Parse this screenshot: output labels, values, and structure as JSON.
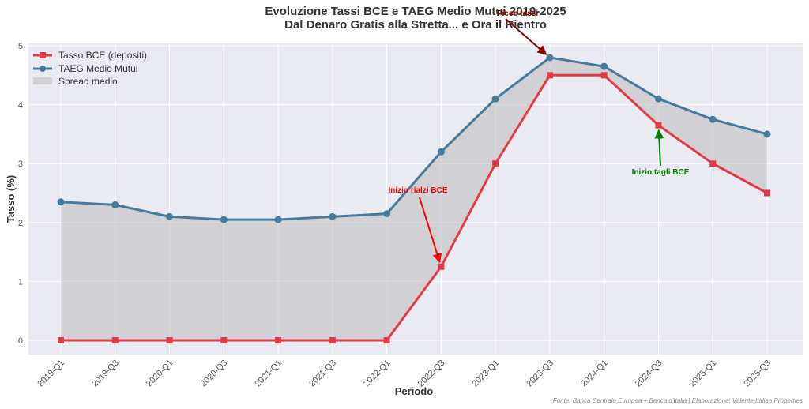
{
  "chart_data": {
    "type": "line",
    "title": "Evoluzione Tassi BCE e TAEG Medio Mutui 2019-2025",
    "subtitle": "Dal Denaro Gratis alla Stretta... e Ora il Rientro",
    "xlabel": "Periodo",
    "ylabel": "Tasso (%)",
    "ylim": [
      0,
      5
    ],
    "yticks": [
      0,
      1,
      2,
      3,
      4,
      5
    ],
    "grid": true,
    "legend_position": "upper left",
    "categories": [
      "2019-Q1",
      "2019-Q3",
      "2020-Q1",
      "2020-Q3",
      "2021-Q1",
      "2021-Q3",
      "2022-Q1",
      "2022-Q3",
      "2023-Q1",
      "2023-Q3",
      "2024-Q1",
      "2024-Q3",
      "2025-Q1",
      "2025-Q3"
    ],
    "series": [
      {
        "name": "Tasso BCE (depositi)",
        "color": "#e63946",
        "marker": "square",
        "values": [
          0,
          0,
          0,
          0,
          0,
          0,
          0,
          1.25,
          3.0,
          4.5,
          4.5,
          3.65,
          3.0,
          2.5
        ]
      },
      {
        "name": "TAEG Medio Mutui",
        "color": "#457b9d",
        "marker": "circle",
        "values": [
          2.35,
          2.3,
          2.1,
          2.05,
          2.05,
          2.1,
          2.15,
          3.2,
          4.1,
          4.8,
          4.65,
          4.1,
          3.75,
          3.5
        ]
      }
    ],
    "fill": {
      "name": "Spread medio",
      "color": "#b8b8b8",
      "between": [
        "Tasso BCE (depositi)",
        "TAEG Medio Mutui"
      ]
    },
    "annotations": [
      {
        "text": "Picco tassi",
        "color": "#8b0000",
        "point_index": 9,
        "series": "TAEG Medio Mutui"
      },
      {
        "text": "Inizio rialzi BCE",
        "color": "#ff0000",
        "point_index": 7,
        "series": "Tasso BCE (depositi)"
      },
      {
        "text": "Inizio tagli BCE",
        "color": "#008000",
        "point_index": 11,
        "series": "Tasso BCE (depositi)"
      }
    ]
  },
  "source_note": "Fonte: Banca Centrale Europea + Banca d'Italia | Elaborazione: Valente Italian Properties"
}
